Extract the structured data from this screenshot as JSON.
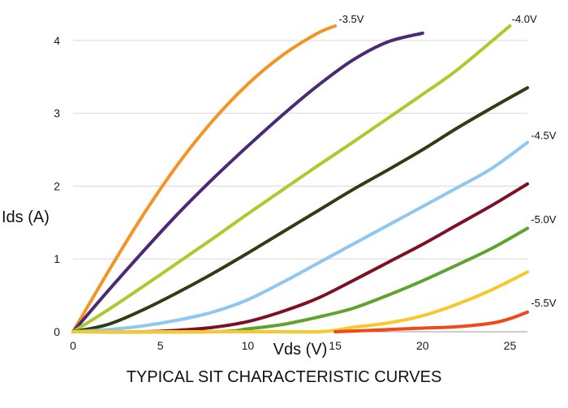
{
  "chart_data": {
    "type": "line",
    "title": "",
    "caption": "TYPICAL SIT CHARACTERISTIC CURVES",
    "xlabel": "Vds (V)",
    "ylabel": "Ids (A)",
    "xlim": [
      0,
      26
    ],
    "ylim": [
      0,
      4.4
    ],
    "xticks": [
      0,
      5,
      10,
      15,
      20,
      25
    ],
    "yticks": [
      0,
      1,
      2,
      3,
      4
    ],
    "grid": "horizontal",
    "legend": "none",
    "curve_labels": [
      {
        "text": "-3.5V",
        "x": 15.2,
        "y": 4.2
      },
      {
        "text": "-4.0V",
        "x": 25.1,
        "y": 4.2
      },
      {
        "text": "-4.5V",
        "x": 26.2,
        "y": 2.6
      },
      {
        "text": "-5.0V",
        "x": 26.2,
        "y": 1.45
      },
      {
        "text": "-5.5V",
        "x": 26.2,
        "y": 0.3
      }
    ],
    "series": [
      {
        "color": "#f39425",
        "x": [
          0,
          2,
          4,
          6,
          8,
          10,
          12,
          14,
          15
        ],
        "y": [
          0,
          0.82,
          1.6,
          2.3,
          2.9,
          3.4,
          3.8,
          4.1,
          4.2
        ]
      },
      {
        "color": "#4b2a75",
        "x": [
          0,
          2,
          4,
          6,
          8,
          10,
          12,
          14,
          16,
          18,
          20
        ],
        "y": [
          0,
          0.56,
          1.1,
          1.62,
          2.1,
          2.55,
          2.98,
          3.38,
          3.73,
          3.98,
          4.1
        ]
      },
      {
        "color": "#a9cb2c",
        "x": [
          0,
          2,
          4,
          6,
          8,
          10,
          12,
          14,
          16,
          18,
          20,
          22,
          25
        ],
        "y": [
          0,
          0.3,
          0.62,
          0.95,
          1.28,
          1.62,
          1.95,
          2.28,
          2.6,
          2.93,
          3.26,
          3.6,
          4.2
        ]
      },
      {
        "color": "#2e3d12",
        "x": [
          0,
          2,
          4,
          6,
          8,
          10,
          12,
          14,
          16,
          18,
          20,
          22,
          24,
          26
        ],
        "y": [
          0,
          0.1,
          0.3,
          0.54,
          0.8,
          1.08,
          1.37,
          1.66,
          1.95,
          2.22,
          2.5,
          2.8,
          3.08,
          3.35
        ]
      },
      {
        "color": "#8ec7f0",
        "x": [
          0,
          2,
          4,
          6,
          8,
          10,
          12,
          14,
          16,
          18,
          20,
          22,
          24,
          26
        ],
        "y": [
          0,
          0.03,
          0.08,
          0.16,
          0.27,
          0.44,
          0.68,
          0.94,
          1.2,
          1.46,
          1.72,
          1.98,
          2.25,
          2.6
        ]
      },
      {
        "color": "#7d1024",
        "x": [
          0,
          4,
          6,
          8,
          10,
          12,
          14,
          16,
          18,
          20,
          22,
          24,
          26
        ],
        "y": [
          0,
          0,
          0.02,
          0.06,
          0.14,
          0.28,
          0.46,
          0.7,
          0.95,
          1.2,
          1.47,
          1.74,
          2.03
        ]
      },
      {
        "color": "#5fa22d",
        "x": [
          0,
          8,
          10,
          12,
          14,
          16,
          18,
          20,
          22,
          24,
          26
        ],
        "y": [
          0,
          0,
          0.04,
          0.1,
          0.2,
          0.32,
          0.5,
          0.7,
          0.92,
          1.15,
          1.42
        ]
      },
      {
        "color": "#f6c829",
        "x": [
          0,
          12,
          14,
          15,
          16,
          18,
          20,
          22,
          24,
          26
        ],
        "y": [
          0,
          0,
          0,
          0.02,
          0.06,
          0.12,
          0.22,
          0.38,
          0.58,
          0.82
        ]
      },
      {
        "color": "#f04a1b",
        "x": [
          15,
          16,
          18,
          20,
          22,
          24,
          25,
          26
        ],
        "y": [
          0,
          0.01,
          0.03,
          0.05,
          0.07,
          0.12,
          0.18,
          0.27
        ]
      }
    ]
  }
}
